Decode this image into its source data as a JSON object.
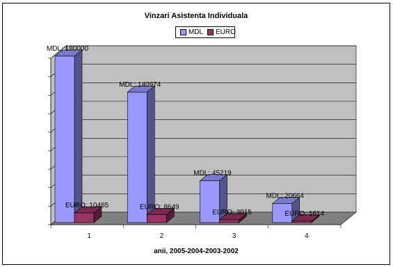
{
  "chart_data": {
    "type": "bar",
    "title": "Vinzari Asistenta Individuala",
    "xlabel": "anii, 2005-2004-2003-2002",
    "ylabel": "",
    "categories": [
      "1",
      "2",
      "3",
      "4"
    ],
    "ylim": [
      0,
      180000
    ],
    "grid": true,
    "legend_position": "top",
    "series": [
      {
        "name": "MDL",
        "values": [
          180000,
          140974,
          45219,
          20664
        ],
        "color": "#9999ff",
        "labels": [
          "MDL; 180000",
          "MDL; 140974",
          "MDL; 45219",
          "MDL; 20664"
        ]
      },
      {
        "name": "EURO",
        "values": [
          10465,
          8649,
          3015,
          1614
        ],
        "color": "#993366",
        "labels": [
          "EURO; 10465",
          "EURO; 8649",
          "EURO; 3015",
          "EURO; 1614"
        ]
      }
    ]
  }
}
